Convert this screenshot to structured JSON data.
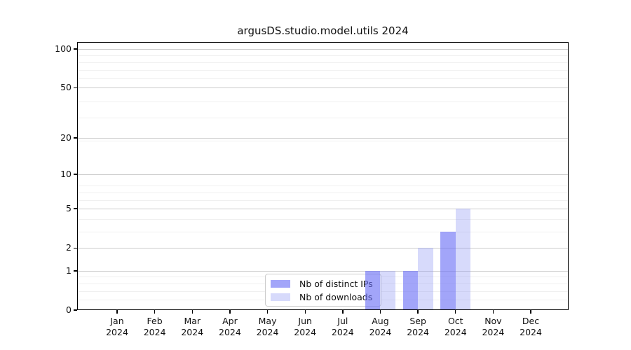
{
  "title": "argusDS.studio.model.utils 2024",
  "legend": {
    "items": [
      {
        "label": "Nb of distinct IPs",
        "color": "rgba(105,110,245,0.62)"
      },
      {
        "label": "Nb of downloads",
        "color": "rgba(135,142,243,0.33)"
      }
    ]
  },
  "axes": {
    "year_label": "2024",
    "months": [
      "Jan",
      "Feb",
      "Mar",
      "Apr",
      "May",
      "Jun",
      "Jul",
      "Aug",
      "Sep",
      "Oct",
      "Nov",
      "Dec"
    ],
    "y_tick_labels": [
      "0",
      "1",
      "2",
      "5",
      "10",
      "20",
      "50",
      "100"
    ]
  },
  "chart_data": {
    "type": "bar",
    "title": "argusDS.studio.model.utils 2024",
    "categories": [
      "Jan 2024",
      "Feb 2024",
      "Mar 2024",
      "Apr 2024",
      "May 2024",
      "Jun 2024",
      "Jul 2024",
      "Aug 2024",
      "Sep 2024",
      "Oct 2024",
      "Nov 2024",
      "Dec 2024"
    ],
    "series": [
      {
        "name": "Nb of distinct IPs",
        "values": [
          0,
          0,
          0,
          0,
          0,
          0,
          0,
          1,
          1,
          3,
          0,
          0
        ],
        "color": "rgba(105,110,245,0.62)"
      },
      {
        "name": "Nb of downloads",
        "values": [
          0,
          0,
          0,
          0,
          0,
          0,
          0,
          1,
          2,
          5,
          0,
          0
        ],
        "color": "rgba(135,142,243,0.33)"
      }
    ],
    "xlabel": "",
    "ylabel": "",
    "yscale": "log1p",
    "ylim": [
      0,
      100
    ],
    "y_major_ticks": [
      0,
      1,
      2,
      5,
      10,
      20,
      50,
      100
    ],
    "y_minor_ticks": [
      0.2,
      0.4,
      0.6,
      0.8,
      3,
      4,
      6,
      7,
      8,
      19,
      29,
      39,
      59,
      69,
      79,
      89
    ],
    "grid": true,
    "legend_position": "lower center"
  }
}
